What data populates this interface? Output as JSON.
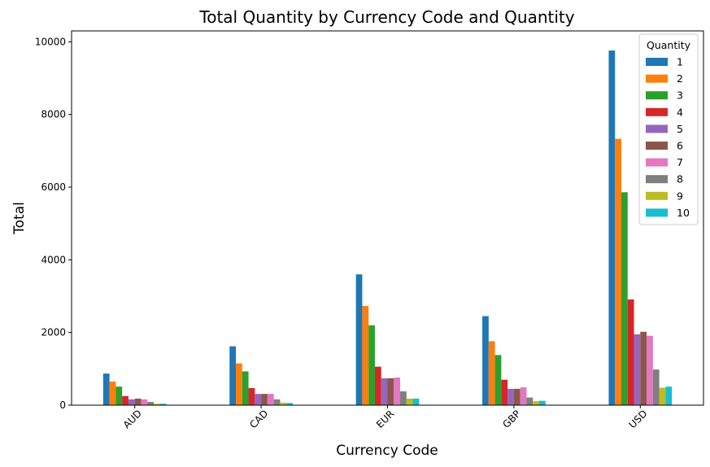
{
  "chart_data": {
    "type": "bar",
    "title": "Total Quantity by Currency Code and Quantity",
    "xlabel": "Currency Code",
    "ylabel": "Total",
    "categories": [
      "AUD",
      "CAD",
      "EUR",
      "GBP",
      "USD"
    ],
    "ylim": [
      0,
      10300
    ],
    "yticks": [
      0,
      2000,
      4000,
      6000,
      8000,
      10000
    ],
    "grid": false,
    "legend": {
      "title": "Quantity",
      "placement": "top-right"
    },
    "series": [
      {
        "name": "1",
        "color": "#1f77b4",
        "values": [
          870,
          1620,
          3600,
          2450,
          9760
        ]
      },
      {
        "name": "2",
        "color": "#ff7f0e",
        "values": [
          650,
          1150,
          2730,
          1760,
          7330
        ]
      },
      {
        "name": "3",
        "color": "#2ca02c",
        "values": [
          510,
          930,
          2200,
          1380,
          5860
        ]
      },
      {
        "name": "4",
        "color": "#d62728",
        "values": [
          250,
          470,
          1060,
          700,
          2910
        ]
      },
      {
        "name": "5",
        "color": "#9467bd",
        "values": [
          160,
          310,
          740,
          450,
          1950
        ]
      },
      {
        "name": "6",
        "color": "#8c564b",
        "values": [
          180,
          310,
          740,
          450,
          2020
        ]
      },
      {
        "name": "7",
        "color": "#e377c2",
        "values": [
          160,
          310,
          760,
          490,
          1910
        ]
      },
      {
        "name": "8",
        "color": "#7f7f7f",
        "values": [
          90,
          160,
          380,
          210,
          980
        ]
      },
      {
        "name": "9",
        "color": "#bcbd22",
        "values": [
          40,
          70,
          180,
          110,
          480
        ]
      },
      {
        "name": "10",
        "color": "#17becf",
        "values": [
          40,
          60,
          180,
          120,
          510
        ]
      }
    ]
  }
}
